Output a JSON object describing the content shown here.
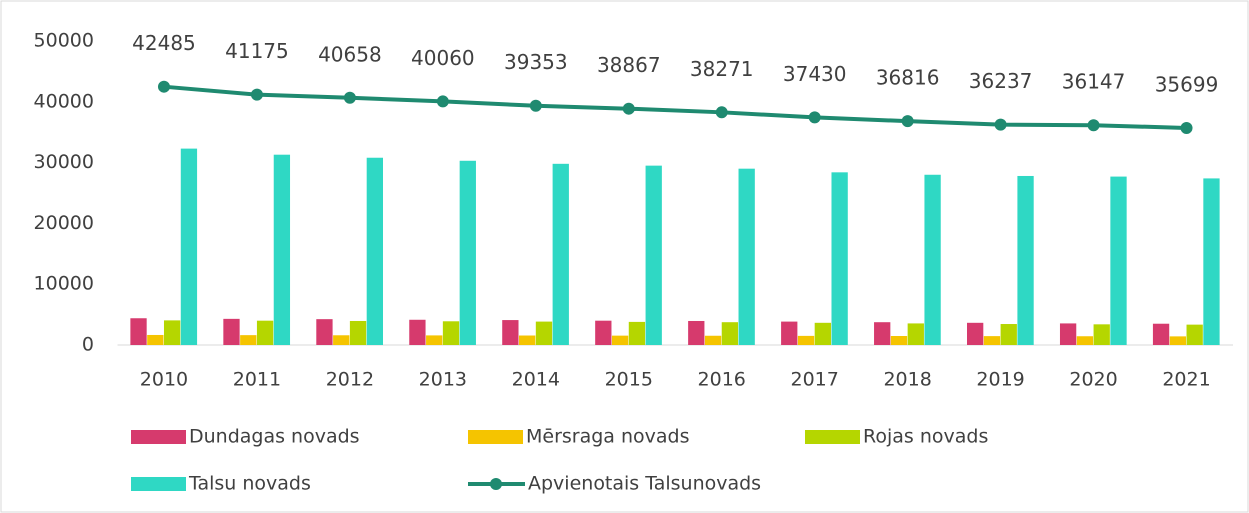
{
  "chart_data": {
    "type": "combo",
    "categories": [
      "2010",
      "2011",
      "2012",
      "2013",
      "2014",
      "2015",
      "2016",
      "2017",
      "2018",
      "2019",
      "2020",
      "2021"
    ],
    "ylim": [
      0,
      50000
    ],
    "yticks": [
      0,
      10000,
      20000,
      30000,
      40000,
      50000
    ],
    "series": [
      {
        "name": "Dundagas novads",
        "type": "bar",
        "color": "#d63a6d",
        "values": [
          4400,
          4300,
          4250,
          4150,
          4100,
          4000,
          3950,
          3850,
          3750,
          3650,
          3550,
          3500
        ]
      },
      {
        "name": "Mērsraga novads",
        "type": "bar",
        "color": "#f5c400",
        "values": [
          1650,
          1620,
          1600,
          1580,
          1560,
          1540,
          1520,
          1500,
          1480,
          1460,
          1440,
          1420
        ]
      },
      {
        "name": "Rojas novads",
        "type": "bar",
        "color": "#b5d600",
        "values": [
          4050,
          4000,
          3950,
          3900,
          3850,
          3800,
          3750,
          3650,
          3550,
          3450,
          3400,
          3350
        ]
      },
      {
        "name": "Talsu novads",
        "type": "bar",
        "color": "#2fd8c4",
        "values": [
          32300,
          31300,
          30800,
          30300,
          29800,
          29500,
          29000,
          28400,
          28000,
          27800,
          27700,
          27400
        ]
      },
      {
        "name": "Apvienotais Talsunovads",
        "type": "line",
        "color": "#1f8a70",
        "values": [
          42485,
          41175,
          40658,
          40060,
          39353,
          38867,
          38271,
          37430,
          36816,
          36237,
          36147,
          35699
        ],
        "show_labels": true
      }
    ]
  }
}
